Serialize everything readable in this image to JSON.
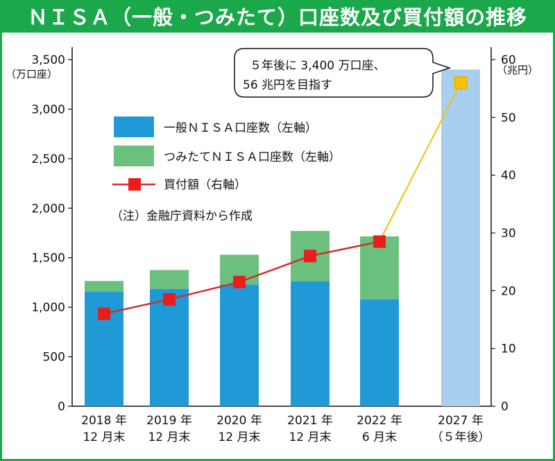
{
  "title": "ＮＩＳＡ（一般・つみたて）口座数及び買付額の推移",
  "colors": {
    "frame": "#1aa84b",
    "general": "#1f9ad7",
    "tsumitate": "#6cc07e",
    "projection": "#a8cff0",
    "purchase_line": "#d42b2b",
    "projection_line": "#f2c200"
  },
  "chart_data": {
    "type": "bar",
    "categories": [
      {
        "line1": "2018 年",
        "line2": "12 月末"
      },
      {
        "line1": "2019 年",
        "line2": "12 月末"
      },
      {
        "line1": "2020 年",
        "line2": "12 月末"
      },
      {
        "line1": "2021 年",
        "line2": "12 月末"
      },
      {
        "line1": "2022 年",
        "line2": "6 月末"
      },
      {
        "line1": "2027 年",
        "line2": "（５年後）"
      }
    ],
    "series": [
      {
        "name": "一般ＮＩＳＡ口座数（左軸）",
        "axis": "left",
        "values": [
          1160,
          1185,
          1230,
          1260,
          1080,
          3400
        ]
      },
      {
        "name": "つみたてＮＩＳＡ口座数（左軸）",
        "axis": "left",
        "values": [
          105,
          190,
          300,
          510,
          635,
          0
        ]
      },
      {
        "name": "買付額（右軸）",
        "axis": "right",
        "type": "line",
        "values": [
          16,
          18.5,
          21.5,
          26,
          28.5,
          56
        ]
      }
    ],
    "left_axis": {
      "unit": "（万口座）",
      "ylim": [
        0,
        3500
      ],
      "ticks": [
        "0",
        "500",
        "1,000",
        "1,500",
        "2,000",
        "2,500",
        "3,000",
        "3,500"
      ]
    },
    "right_axis": {
      "unit": "（兆円）",
      "ylim": [
        0,
        60
      ],
      "ticks": [
        "0",
        "10",
        "20",
        "30",
        "40",
        "50",
        "60"
      ]
    },
    "note": "（注）金融庁資料から作成",
    "callout": {
      "line1": "５年後に 3,400 万口座、",
      "line2": "56 兆円を目指す"
    }
  }
}
